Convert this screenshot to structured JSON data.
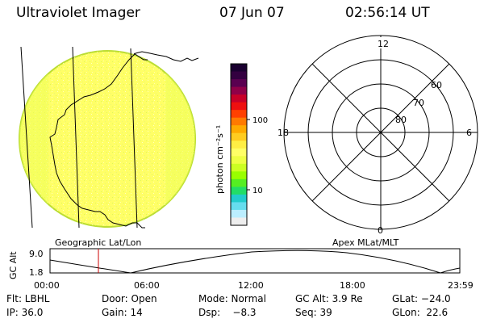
{
  "header": {
    "instrument": "Ultraviolet Imager",
    "date": "07 Jun 07",
    "time": "02:56:14 UT"
  },
  "colorbar": {
    "unit_label": "photon cm⁻²s⁻¹",
    "tick_100": "100",
    "tick_10": "10",
    "colors": [
      "#1a0030",
      "#330040",
      "#5a0050",
      "#900048",
      "#c80028",
      "#ee1010",
      "#ff4000",
      "#ff7a00",
      "#ffaa00",
      "#ffcc20",
      "#ffee44",
      "#ffff66",
      "#eeff44",
      "#ccff22",
      "#99ff00",
      "#55ee22",
      "#22dd66",
      "#22cccc",
      "#66ddee",
      "#bbeeff",
      "#eeeeee"
    ]
  },
  "left_panel": {
    "label": "Geographic Lat/Lon",
    "disk_color": "#ffff66"
  },
  "right_panel": {
    "label": "Apex MLat/MLT",
    "mlt_12": "12",
    "mlt_18": "18",
    "mlt_6": "6",
    "mlt_0": "0",
    "lat_60": "60",
    "lat_70": "70",
    "lat_80": "80"
  },
  "altitude_plot": {
    "ylabel": "GC Alt",
    "ytick_top": "9.0",
    "ytick_bottom": "1.8",
    "xticks": [
      "00:00",
      "06:00",
      "12:00",
      "18:00",
      "23:59"
    ],
    "current_time_color": "#cc0000"
  },
  "info": {
    "filter": "Flt: LBHL",
    "door": "Door: Open",
    "mode": "Mode: Normal",
    "gc_alt": "GC Alt: 3.9 Re",
    "glat": "GLat: −24.0",
    "ip": "IP: 36.0",
    "gain": "Gain: 14",
    "dsp": "Dsp:    −8.3",
    "seq": "Seq: 39",
    "glon": "GLon:  22.6"
  }
}
